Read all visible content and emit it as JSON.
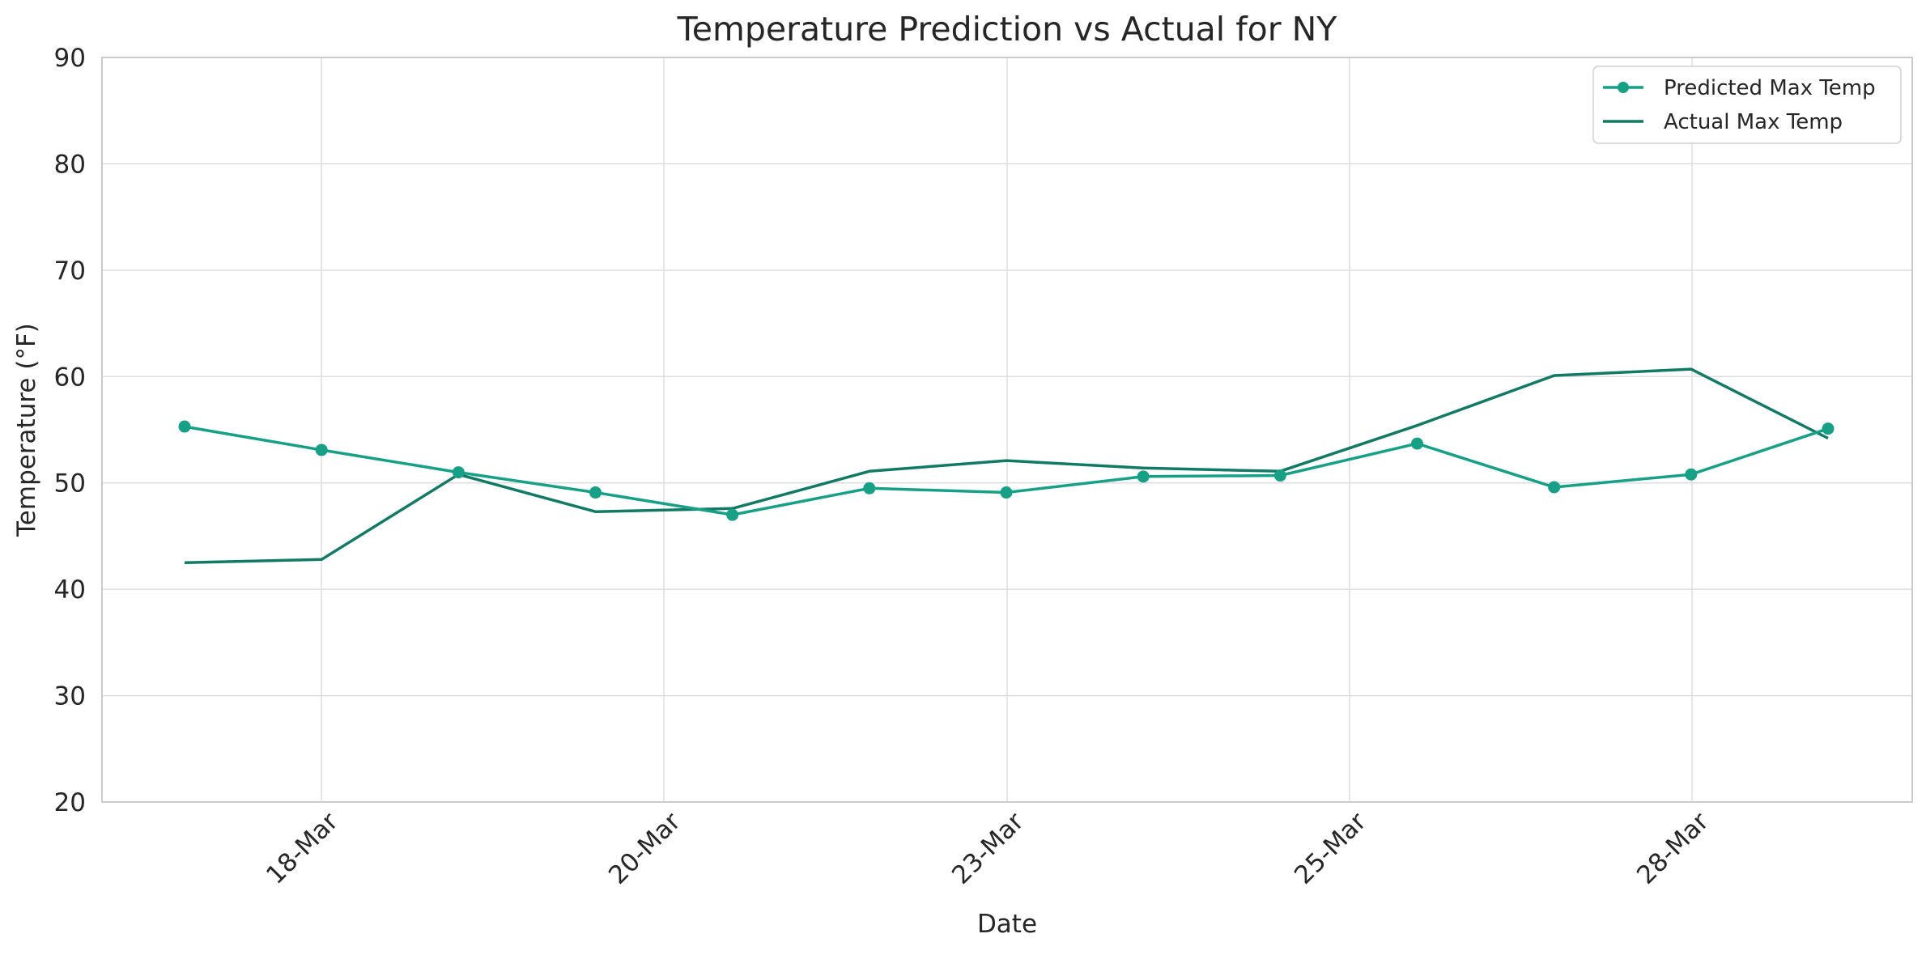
{
  "chart_data": {
    "type": "line",
    "title": "Temperature Prediction vs Actual for NY",
    "xlabel": "Date",
    "ylabel": "Temperature (°F)",
    "ylim": [
      20,
      90
    ],
    "yticks": [
      20,
      30,
      40,
      50,
      60,
      70,
      80,
      90
    ],
    "x": [
      "17-Mar",
      "18-Mar",
      "19-Mar",
      "19-Mar",
      "20-Mar",
      "21-Mar",
      "23-Mar",
      "24-Mar",
      "24-Mar",
      "25-Mar",
      "26-Mar",
      "28-Mar",
      "29-Mar"
    ],
    "xticks": [
      "18-Mar",
      "20-Mar",
      "23-Mar",
      "25-Mar",
      "28-Mar"
    ],
    "grid": true,
    "legend_position": "top-right",
    "series": [
      {
        "name": "Predicted Max Temp",
        "color": "#16a085",
        "marker": "circle",
        "values": [
          55.3,
          53.1,
          51.0,
          49.1,
          47.0,
          49.5,
          49.1,
          50.6,
          50.7,
          53.7,
          49.6,
          50.8,
          55.1
        ]
      },
      {
        "name": "Actual Max Temp",
        "color": "#117a65",
        "marker": "none",
        "values": [
          42.5,
          42.8,
          50.8,
          47.3,
          47.6,
          51.1,
          52.1,
          51.4,
          51.1,
          55.4,
          60.1,
          60.7,
          54.2
        ]
      }
    ]
  }
}
